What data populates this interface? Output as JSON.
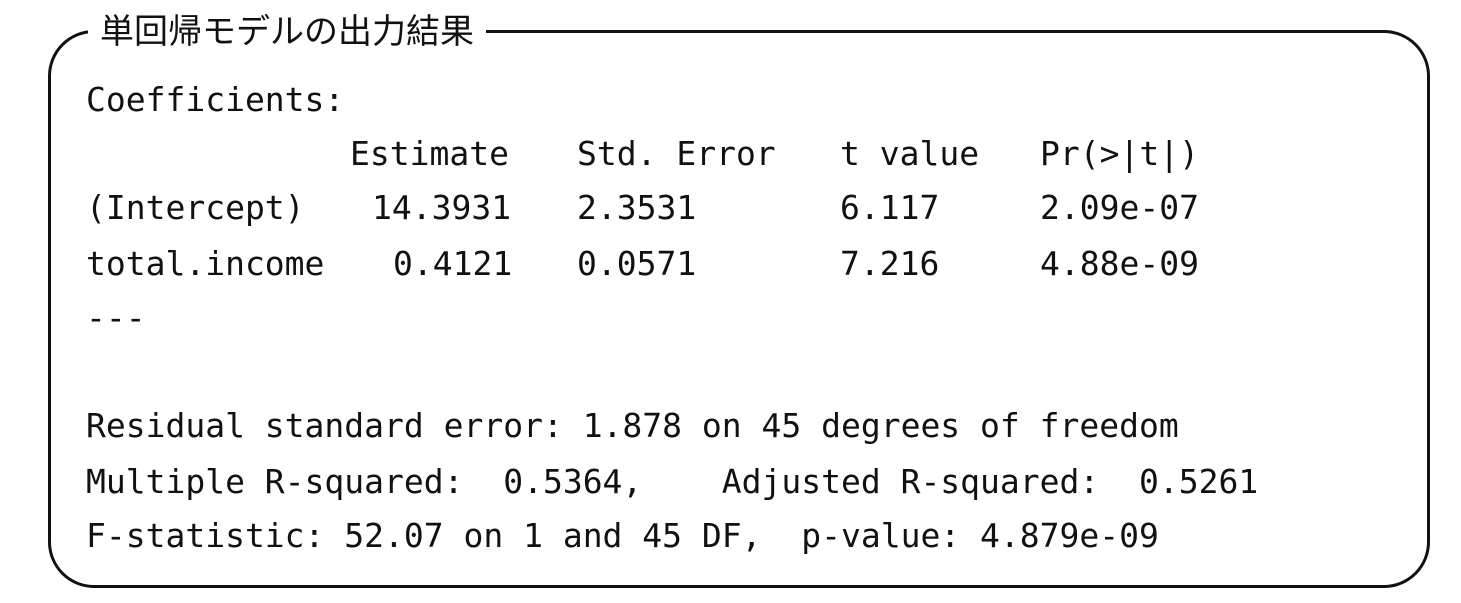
{
  "title": "単回帰モデルの出力結果",
  "coefficients_label": "Coefficients:",
  "table": {
    "headers": [
      "Estimate",
      "Std. Error",
      "t value",
      "Pr(>|t|)"
    ],
    "rows": [
      {
        "name": "(Intercept)",
        "estimate": "14.3931",
        "std_error": "2.3531",
        "t_value": "6.117",
        "p": "2.09e-07"
      },
      {
        "name": "total.income",
        "estimate": "0.4121",
        "std_error": "0.0571",
        "t_value": "7.216",
        "p": "4.88e-09"
      }
    ]
  },
  "separator": "---",
  "summary": {
    "residual": "Residual standard error: 1.878 on 45 degrees of freedom",
    "rsquared": "Multiple R-squared:  0.5364,    Adjusted R-squared:  0.5261",
    "fstat": "F-statistic: 52.07 on 1 and 45 DF,  p-value: 4.879e-09"
  }
}
